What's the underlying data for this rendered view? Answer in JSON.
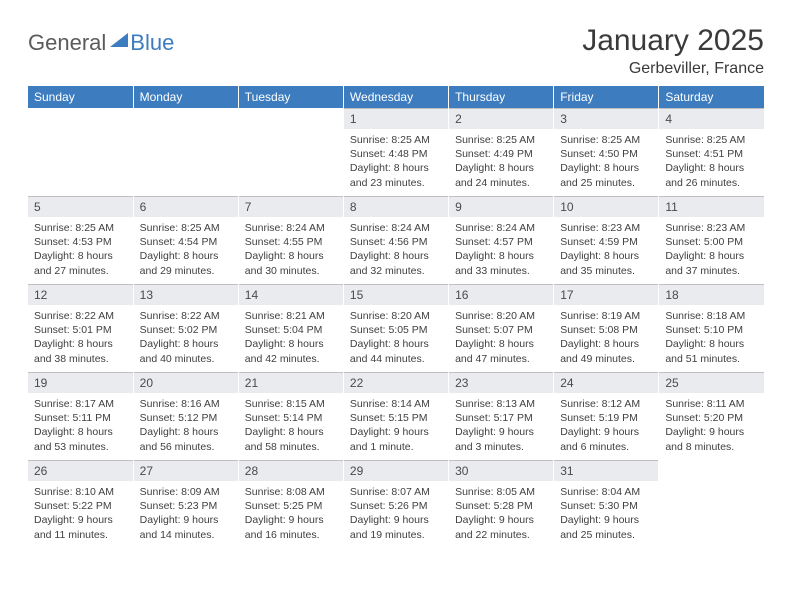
{
  "brand": {
    "part1": "General",
    "part2": "Blue"
  },
  "title": "January 2025",
  "location": "Gerbeviller, France",
  "colors": {
    "header_bg": "#3d7cbf",
    "header_text": "#ffffff",
    "daynum_bg": "#e9ebee",
    "daynum_border": "#bfbfbf",
    "body_text": "#404040",
    "title_text": "#3a3a3a",
    "page_bg": "#ffffff"
  },
  "fonts": {
    "title_size": 30,
    "location_size": 16,
    "weekday_size": 12,
    "daynum_size": 12,
    "body_size": 10.5
  },
  "weekdays": [
    "Sunday",
    "Monday",
    "Tuesday",
    "Wednesday",
    "Thursday",
    "Friday",
    "Saturday"
  ],
  "weeks": [
    [
      {
        "empty": true
      },
      {
        "empty": true
      },
      {
        "empty": true
      },
      {
        "num": "1",
        "sunrise": "8:25 AM",
        "sunset": "4:48 PM",
        "daylight_h": "8",
        "daylight_m": "23"
      },
      {
        "num": "2",
        "sunrise": "8:25 AM",
        "sunset": "4:49 PM",
        "daylight_h": "8",
        "daylight_m": "24"
      },
      {
        "num": "3",
        "sunrise": "8:25 AM",
        "sunset": "4:50 PM",
        "daylight_h": "8",
        "daylight_m": "25"
      },
      {
        "num": "4",
        "sunrise": "8:25 AM",
        "sunset": "4:51 PM",
        "daylight_h": "8",
        "daylight_m": "26"
      }
    ],
    [
      {
        "num": "5",
        "sunrise": "8:25 AM",
        "sunset": "4:53 PM",
        "daylight_h": "8",
        "daylight_m": "27"
      },
      {
        "num": "6",
        "sunrise": "8:25 AM",
        "sunset": "4:54 PM",
        "daylight_h": "8",
        "daylight_m": "29"
      },
      {
        "num": "7",
        "sunrise": "8:24 AM",
        "sunset": "4:55 PM",
        "daylight_h": "8",
        "daylight_m": "30"
      },
      {
        "num": "8",
        "sunrise": "8:24 AM",
        "sunset": "4:56 PM",
        "daylight_h": "8",
        "daylight_m": "32"
      },
      {
        "num": "9",
        "sunrise": "8:24 AM",
        "sunset": "4:57 PM",
        "daylight_h": "8",
        "daylight_m": "33"
      },
      {
        "num": "10",
        "sunrise": "8:23 AM",
        "sunset": "4:59 PM",
        "daylight_h": "8",
        "daylight_m": "35"
      },
      {
        "num": "11",
        "sunrise": "8:23 AM",
        "sunset": "5:00 PM",
        "daylight_h": "8",
        "daylight_m": "37"
      }
    ],
    [
      {
        "num": "12",
        "sunrise": "8:22 AM",
        "sunset": "5:01 PM",
        "daylight_h": "8",
        "daylight_m": "38"
      },
      {
        "num": "13",
        "sunrise": "8:22 AM",
        "sunset": "5:02 PM",
        "daylight_h": "8",
        "daylight_m": "40"
      },
      {
        "num": "14",
        "sunrise": "8:21 AM",
        "sunset": "5:04 PM",
        "daylight_h": "8",
        "daylight_m": "42"
      },
      {
        "num": "15",
        "sunrise": "8:20 AM",
        "sunset": "5:05 PM",
        "daylight_h": "8",
        "daylight_m": "44"
      },
      {
        "num": "16",
        "sunrise": "8:20 AM",
        "sunset": "5:07 PM",
        "daylight_h": "8",
        "daylight_m": "47"
      },
      {
        "num": "17",
        "sunrise": "8:19 AM",
        "sunset": "5:08 PM",
        "daylight_h": "8",
        "daylight_m": "49"
      },
      {
        "num": "18",
        "sunrise": "8:18 AM",
        "sunset": "5:10 PM",
        "daylight_h": "8",
        "daylight_m": "51"
      }
    ],
    [
      {
        "num": "19",
        "sunrise": "8:17 AM",
        "sunset": "5:11 PM",
        "daylight_h": "8",
        "daylight_m": "53"
      },
      {
        "num": "20",
        "sunrise": "8:16 AM",
        "sunset": "5:12 PM",
        "daylight_h": "8",
        "daylight_m": "56"
      },
      {
        "num": "21",
        "sunrise": "8:15 AM",
        "sunset": "5:14 PM",
        "daylight_h": "8",
        "daylight_m": "58"
      },
      {
        "num": "22",
        "sunrise": "8:14 AM",
        "sunset": "5:15 PM",
        "daylight_h": "9",
        "daylight_m": "1",
        "minute_word": "minute"
      },
      {
        "num": "23",
        "sunrise": "8:13 AM",
        "sunset": "5:17 PM",
        "daylight_h": "9",
        "daylight_m": "3"
      },
      {
        "num": "24",
        "sunrise": "8:12 AM",
        "sunset": "5:19 PM",
        "daylight_h": "9",
        "daylight_m": "6"
      },
      {
        "num": "25",
        "sunrise": "8:11 AM",
        "sunset": "5:20 PM",
        "daylight_h": "9",
        "daylight_m": "8"
      }
    ],
    [
      {
        "num": "26",
        "sunrise": "8:10 AM",
        "sunset": "5:22 PM",
        "daylight_h": "9",
        "daylight_m": "11"
      },
      {
        "num": "27",
        "sunrise": "8:09 AM",
        "sunset": "5:23 PM",
        "daylight_h": "9",
        "daylight_m": "14"
      },
      {
        "num": "28",
        "sunrise": "8:08 AM",
        "sunset": "5:25 PM",
        "daylight_h": "9",
        "daylight_m": "16"
      },
      {
        "num": "29",
        "sunrise": "8:07 AM",
        "sunset": "5:26 PM",
        "daylight_h": "9",
        "daylight_m": "19"
      },
      {
        "num": "30",
        "sunrise": "8:05 AM",
        "sunset": "5:28 PM",
        "daylight_h": "9",
        "daylight_m": "22"
      },
      {
        "num": "31",
        "sunrise": "8:04 AM",
        "sunset": "5:30 PM",
        "daylight_h": "9",
        "daylight_m": "25"
      },
      {
        "empty": true
      }
    ]
  ]
}
